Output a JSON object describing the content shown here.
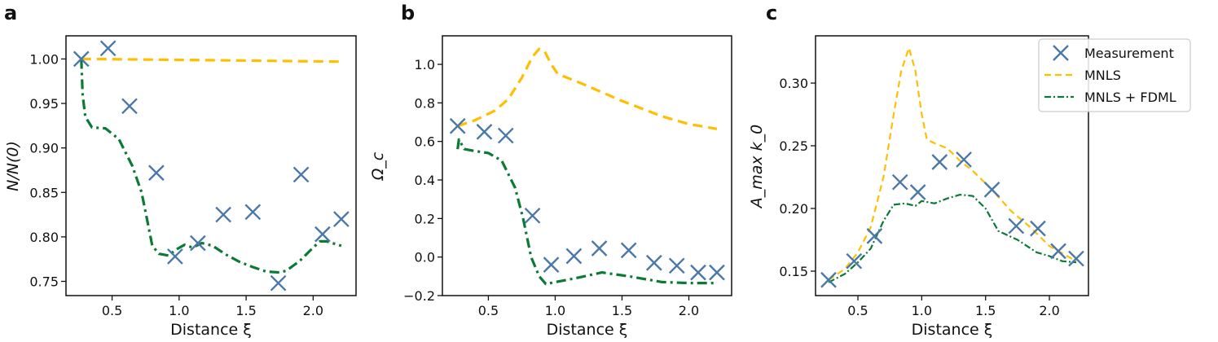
{
  "colors": {
    "measurement": "#4a78a8",
    "mnls": "#ffbf00",
    "fdml": "#0a7a34"
  },
  "legend": {
    "placement": "upper-right of panel c",
    "items": [
      "Measurement",
      "MNLS",
      "MNLS + FDML"
    ]
  },
  "chart_data": [
    {
      "type": "line",
      "panel_label": "a",
      "xlabel": "Distance ξ",
      "ylabel": "N/N(0)",
      "xlim": [
        0.156,
        2.32
      ],
      "ylim": [
        0.734,
        1.026
      ],
      "xticks": [
        "0.5",
        "1.0",
        "1.5",
        "2.0"
      ],
      "yticks": [
        "0.75",
        "0.80",
        "0.85",
        "0.90",
        "0.95",
        "1.00"
      ],
      "measurement": {
        "x": [
          0.27,
          0.47,
          0.63,
          0.83,
          0.97,
          1.14,
          1.33,
          1.55,
          1.74,
          1.91,
          2.07,
          2.21
        ],
        "y": [
          1.0,
          1.012,
          0.947,
          0.872,
          0.778,
          0.793,
          0.825,
          0.828,
          0.748,
          0.87,
          0.803,
          0.82
        ]
      },
      "mnls": {
        "x": [
          0.27,
          1.0,
          1.6,
          2.21
        ],
        "y": [
          1.0,
          0.999,
          0.998,
          0.997
        ]
      },
      "fdml": {
        "x": [
          0.27,
          0.28,
          0.3,
          0.35,
          0.45,
          0.55,
          0.65,
          0.72,
          0.76,
          0.8,
          0.85,
          0.92,
          0.98,
          1.04,
          1.1,
          1.17,
          1.25,
          1.35,
          1.45,
          1.55,
          1.65,
          1.75,
          1.8,
          1.9,
          2.0,
          2.05,
          2.1,
          2.21
        ],
        "y": [
          1.0,
          0.96,
          0.935,
          0.923,
          0.922,
          0.91,
          0.88,
          0.85,
          0.82,
          0.79,
          0.781,
          0.779,
          0.786,
          0.791,
          0.788,
          0.793,
          0.79,
          0.78,
          0.772,
          0.766,
          0.761,
          0.76,
          0.762,
          0.773,
          0.788,
          0.795,
          0.795,
          0.79
        ]
      }
    },
    {
      "type": "line",
      "panel_label": "b",
      "xlabel": "Distance ξ",
      "ylabel": "Ω_c",
      "xlim": [
        0.156,
        2.32
      ],
      "ylim": [
        -0.2,
        1.148
      ],
      "xticks": [
        "0.5",
        "1.0",
        "1.5",
        "2.0"
      ],
      "yticks": [
        "−0.2",
        "0.0",
        "0.2",
        "0.4",
        "0.6",
        "0.8",
        "1.0"
      ],
      "measurement": {
        "x": [
          0.27,
          0.47,
          0.63,
          0.83,
          0.97,
          1.14,
          1.33,
          1.55,
          1.74,
          1.91,
          2.07,
          2.21
        ],
        "y": [
          0.68,
          0.65,
          0.63,
          0.215,
          -0.04,
          0.005,
          0.045,
          0.035,
          -0.03,
          -0.045,
          -0.08,
          -0.08
        ]
      },
      "mnls": {
        "x": [
          0.27,
          0.4,
          0.55,
          0.65,
          0.75,
          0.83,
          0.88,
          0.92,
          0.97,
          1.02,
          1.2,
          1.5,
          1.8,
          2.0,
          2.21
        ],
        "y": [
          0.68,
          0.71,
          0.76,
          0.82,
          0.93,
          1.04,
          1.08,
          1.07,
          1.0,
          0.95,
          0.9,
          0.81,
          0.73,
          0.69,
          0.665
        ]
      },
      "fdml": {
        "x": [
          0.27,
          0.28,
          0.32,
          0.4,
          0.5,
          0.6,
          0.7,
          0.76,
          0.82,
          0.88,
          0.93,
          1.0,
          1.15,
          1.35,
          1.55,
          1.8,
          2.0,
          2.21
        ],
        "y": [
          0.56,
          0.61,
          0.56,
          0.55,
          0.54,
          0.5,
          0.36,
          0.2,
          0.0,
          -0.1,
          -0.14,
          -0.13,
          -0.11,
          -0.08,
          -0.1,
          -0.13,
          -0.135,
          -0.135
        ]
      }
    },
    {
      "type": "line",
      "panel_label": "c",
      "xlabel": "Distance ξ",
      "ylabel": "A_max k_0",
      "xlim": [
        0.168,
        2.306
      ],
      "ylim": [
        0.1305,
        0.3377
      ],
      "xticks": [
        "0.5",
        "1.0",
        "1.5",
        "2.0"
      ],
      "yticks": [
        "0.15",
        "0.20",
        "0.25",
        "0.30"
      ],
      "measurement": {
        "x": [
          0.27,
          0.47,
          0.63,
          0.83,
          0.97,
          1.14,
          1.33,
          1.55,
          1.74,
          1.91,
          2.07,
          2.21
        ],
        "y": [
          0.143,
          0.158,
          0.178,
          0.221,
          0.213,
          0.237,
          0.239,
          0.215,
          0.186,
          0.184,
          0.166,
          0.16
        ]
      },
      "mnls": {
        "x": [
          0.27,
          0.4,
          0.5,
          0.6,
          0.7,
          0.78,
          0.84,
          0.9,
          0.95,
          1.0,
          1.04,
          1.1,
          1.2,
          1.3,
          1.4,
          1.55,
          1.7,
          1.85,
          2.0,
          2.21
        ],
        "y": [
          0.143,
          0.152,
          0.165,
          0.185,
          0.225,
          0.275,
          0.31,
          0.328,
          0.31,
          0.275,
          0.255,
          0.252,
          0.248,
          0.238,
          0.23,
          0.215,
          0.198,
          0.185,
          0.17,
          0.158
        ]
      },
      "fdml": {
        "x": [
          0.27,
          0.4,
          0.5,
          0.6,
          0.7,
          0.78,
          0.87,
          0.95,
          1.0,
          1.1,
          1.2,
          1.3,
          1.4,
          1.5,
          1.6,
          1.75,
          1.9,
          2.0,
          2.1,
          2.21
        ],
        "y": [
          0.141,
          0.148,
          0.157,
          0.168,
          0.19,
          0.203,
          0.204,
          0.202,
          0.206,
          0.204,
          0.208,
          0.211,
          0.21,
          0.2,
          0.182,
          0.175,
          0.165,
          0.162,
          0.158,
          0.157
        ]
      }
    }
  ]
}
